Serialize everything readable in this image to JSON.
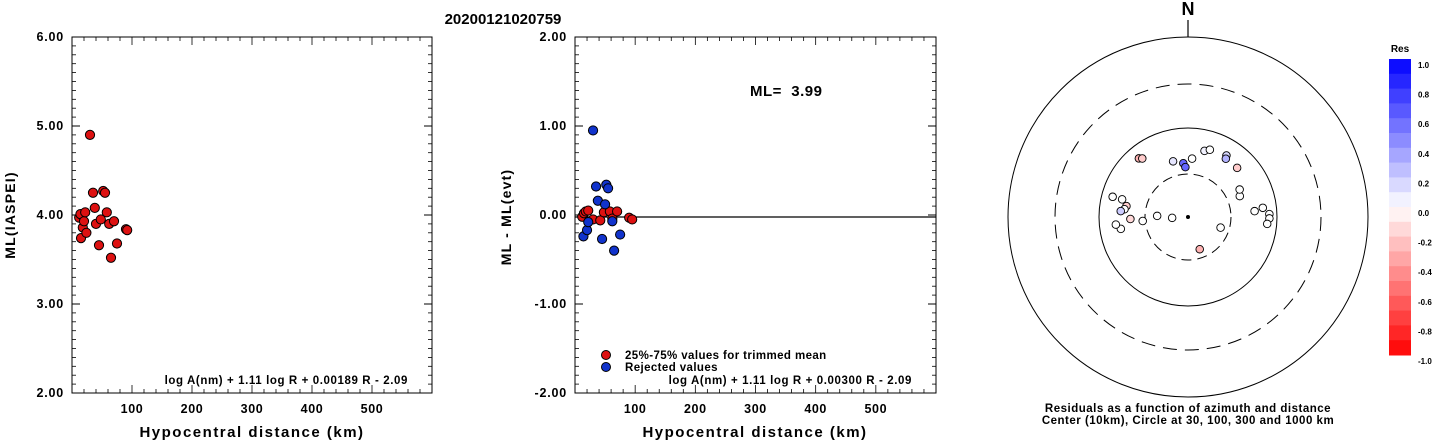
{
  "figure_title": "20200121020759",
  "compass_label": "N",
  "legend_title": "Res",
  "colors": {
    "red": "#dd1111",
    "blue": "#1133cc",
    "text": "#000000"
  },
  "chart_data": [
    {
      "id": "left",
      "type": "scatter",
      "title": "",
      "xlabel": "Hypocentral distance (km)",
      "ylabel": "ML(IASPEI)",
      "xlim": [
        0,
        600
      ],
      "ylim": [
        2.0,
        6.0
      ],
      "xticks": [
        "100",
        "200",
        "300",
        "400",
        "500"
      ],
      "yticks": [
        "2.00",
        "3.00",
        "4.00",
        "5.00",
        "6.00"
      ],
      "formula": "log A(nm) + 1.11 log R + 0.00189 R - 2.09",
      "series": [
        {
          "color": "red",
          "points": [
            [
              12,
              3.97
            ],
            [
              14,
              4.01
            ],
            [
              15,
              3.74
            ],
            [
              18,
              3.86
            ],
            [
              20,
              3.93
            ],
            [
              22,
              4.03
            ],
            [
              24,
              3.8
            ],
            [
              30,
              4.9
            ],
            [
              35,
              4.25
            ],
            [
              38,
              4.08
            ],
            [
              40,
              3.9
            ],
            [
              45,
              3.66
            ],
            [
              48,
              3.95
            ],
            [
              52,
              4.27
            ],
            [
              55,
              4.25
            ],
            [
              58,
              4.03
            ],
            [
              62,
              3.9
            ],
            [
              65,
              3.52
            ],
            [
              70,
              3.93
            ],
            [
              75,
              3.68
            ],
            [
              90,
              3.84
            ],
            [
              92,
              3.83
            ]
          ]
        }
      ]
    },
    {
      "id": "middle",
      "type": "scatter",
      "title": "",
      "xlabel": "Hypocentral distance (km)",
      "ylabel": "ML - ML(evt)",
      "xlim": [
        0,
        600
      ],
      "ylim": [
        -2.0,
        2.0
      ],
      "xticks": [
        "100",
        "200",
        "300",
        "400",
        "500"
      ],
      "yticks": [
        "-2.00",
        "-1.00",
        "0.00",
        "1.00",
        "2.00"
      ],
      "ml_label": "ML=  3.99",
      "formula": "log A(nm) + 1.11 log R + 0.00300 R - 2.09",
      "legend": [
        "25%-75% values for trimmed mean",
        "Rejected values"
      ],
      "series": [
        {
          "color": "red",
          "points": [
            [
              12,
              -0.02
            ],
            [
              15,
              0.02
            ],
            [
              18,
              0.04
            ],
            [
              22,
              0.05
            ],
            [
              30,
              -0.05
            ],
            [
              42,
              -0.06
            ],
            [
              48,
              0.03
            ],
            [
              58,
              0.04
            ],
            [
              62,
              -0.04
            ],
            [
              70,
              0.04
            ],
            [
              90,
              -0.03
            ],
            [
              95,
              -0.05
            ]
          ]
        },
        {
          "color": "blue",
          "points": [
            [
              14,
              -0.24
            ],
            [
              20,
              -0.17
            ],
            [
              22,
              -0.08
            ],
            [
              30,
              0.95
            ],
            [
              35,
              0.32
            ],
            [
              38,
              0.16
            ],
            [
              45,
              -0.27
            ],
            [
              50,
              0.12
            ],
            [
              52,
              0.34
            ],
            [
              55,
              0.3
            ],
            [
              62,
              -0.07
            ],
            [
              65,
              -0.4
            ],
            [
              75,
              -0.22
            ]
          ]
        }
      ]
    },
    {
      "id": "residual-map",
      "type": "scatter",
      "title": "",
      "caption_line1": "Residuals as a function of azimuth and distance",
      "caption_line2": "Center (10km), Circle at 30, 100, 300 and 1000 km",
      "stations": [
        {
          "az": -40,
          "dist": 72,
          "res": -0.3
        },
        {
          "az": -38,
          "dist": 68,
          "res": -0.2
        },
        {
          "az": -15,
          "dist": 44,
          "res": 0.1
        },
        {
          "az": -5,
          "dist": 40,
          "res": 0.6
        },
        {
          "az": -3,
          "dist": 36,
          "res": 0.6
        },
        {
          "az": 4,
          "dist": 45,
          "res": 0.0
        },
        {
          "az": 14,
          "dist": 58,
          "res": 0.05
        },
        {
          "az": 18,
          "dist": 62,
          "res": 0.0
        },
        {
          "az": 32,
          "dist": 65,
          "res": 0.15
        },
        {
          "az": 33,
          "dist": 60,
          "res": 0.3
        },
        {
          "az": 45,
          "dist": 60,
          "res": -0.2
        },
        {
          "az": 68,
          "dist": 42,
          "res": 0.0
        },
        {
          "az": 62,
          "dist": 45,
          "res": 0.0
        },
        {
          "az": 85,
          "dist": 56,
          "res": 0.0
        },
        {
          "az": 83,
          "dist": 70,
          "res": 0.0
        },
        {
          "az": 88,
          "dist": 82,
          "res": 0.0
        },
        {
          "az": 91,
          "dist": 82,
          "res": 0.0
        },
        {
          "az": 95,
          "dist": 78,
          "res": 0.0
        },
        {
          "az": 108,
          "dist": 24,
          "res": 0.0
        },
        {
          "az": 160,
          "dist": 24,
          "res": -0.3
        },
        {
          "az": -93,
          "dist": 15,
          "res": 0.0
        },
        {
          "az": -88,
          "dist": 22,
          "res": 0.0
        },
        {
          "az": -95,
          "dist": 32,
          "res": 0.0
        },
        {
          "az": -92,
          "dist": 44,
          "res": -0.15
        },
        {
          "az": -80,
          "dist": 50,
          "res": -0.2
        },
        {
          "az": -83,
          "dist": 52,
          "res": 0.0
        },
        {
          "az": -85,
          "dist": 57,
          "res": 0.2
        },
        {
          "az": -100,
          "dist": 58,
          "res": 0.0
        },
        {
          "az": -96,
          "dist": 65,
          "res": 0.0
        },
        {
          "az": -75,
          "dist": 75,
          "res": 0.0
        },
        {
          "az": -75,
          "dist": 58,
          "res": 0.0
        }
      ],
      "colorbar_ticks": [
        "1.0",
        "0.8",
        "0.6",
        "0.4",
        "0.2",
        "0.0",
        "-0.2",
        "-0.4",
        "-0.6",
        "-0.8",
        "-1.0"
      ]
    }
  ]
}
